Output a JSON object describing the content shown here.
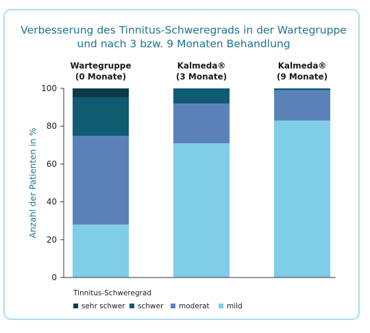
{
  "chart_data": {
    "type": "stacked_bar",
    "title": "Verbesserung des Tinnitus-Schweregrads in der Wartegruppe\nund nach 3 bzw. 9 Monaten Behandlung",
    "categories": [
      "Wartegruppe\n(0 Monate)",
      "Kalmeda®\n(3 Monate)",
      "Kalmeda®\n(9 Monate)"
    ],
    "y_label": "Anzahl der Patienten in %",
    "legend_title": "Tinnitus-Schweregrad",
    "series": [
      {
        "name": "sehr schwer",
        "color": "#0d3a4a",
        "values": [
          5,
          0,
          0
        ]
      },
      {
        "name": "schwer",
        "color": "#0f5b72",
        "values": [
          20,
          8,
          1
        ]
      },
      {
        "name": "moderat",
        "color": "#5b82b8",
        "values": [
          47,
          21,
          16
        ]
      },
      {
        "name": "mild",
        "color": "#7fcde6",
        "values": [
          28,
          71,
          83
        ]
      }
    ],
    "ylim": [
      0,
      100
    ],
    "yticks": [
      0,
      20,
      40,
      60,
      80,
      100
    ]
  }
}
